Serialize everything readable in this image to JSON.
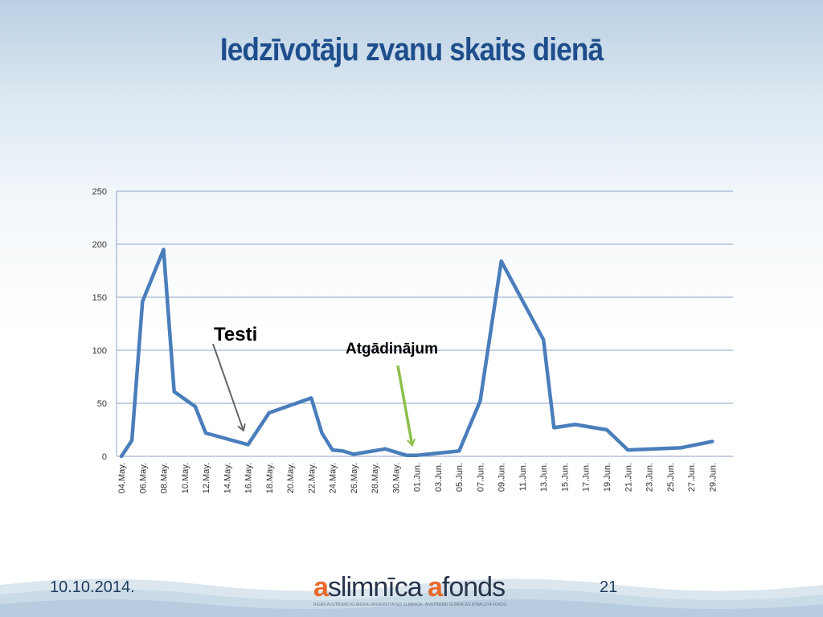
{
  "slide": {
    "title": "Iedzīvotāju zvanu skaits dienā",
    "date": "10.10.2014.",
    "page_number": "21"
  },
  "logo": {
    "a1": "a",
    "word1": "slimnīca",
    "a2": "a",
    "word2": "fonds",
    "subtitle": "RĪGAS AUSTRUMU KLĪNISKĀ UNIVERSITĀTES SLIMNĪCA · AUSTRUMU SLIMNĪCAS ATBALSTA FONDS",
    "accent_color": "#e8692a"
  },
  "chart_data": {
    "type": "line",
    "title": "",
    "xlabel": "",
    "ylabel": "",
    "ylim": [
      0,
      250
    ],
    "yticks": [
      0,
      50,
      100,
      150,
      200,
      250
    ],
    "grid": true,
    "legend": "none",
    "x_tick_labels": [
      "04.May.",
      "06.May.",
      "08.May.",
      "10.May.",
      "12.May.",
      "14.May.",
      "16.May.",
      "18.May.",
      "20.May.",
      "22.May.",
      "24.May.",
      "26.May.",
      "28.May.",
      "30.May.",
      "01.Jun.",
      "03.Jun.",
      "05.Jun.",
      "07.Jun.",
      "09.Jun.",
      "11.Jun.",
      "13.Jun.",
      "15.Jun.",
      "17.Jun.",
      "19.Jun.",
      "21.Jun.",
      "23.Jun.",
      "25.Jun.",
      "27.Jun.",
      "29.Jun."
    ],
    "x_start_date": "2014-05-04",
    "series": [
      {
        "name": "",
        "color": "#4a7ebb",
        "points": [
          [
            "2014-05-04",
            0
          ],
          [
            "2014-05-05",
            15
          ],
          [
            "2014-05-06",
            146
          ],
          [
            "2014-05-08",
            195
          ],
          [
            "2014-05-09",
            61
          ],
          [
            "2014-05-11",
            47
          ],
          [
            "2014-05-12",
            22
          ],
          [
            "2014-05-16",
            11
          ],
          [
            "2014-05-18",
            41
          ],
          [
            "2014-05-22",
            55
          ],
          [
            "2014-05-23",
            22
          ],
          [
            "2014-05-24",
            6
          ],
          [
            "2014-05-25",
            5
          ],
          [
            "2014-05-26",
            2
          ],
          [
            "2014-05-29",
            7
          ],
          [
            "2014-05-31",
            1
          ],
          [
            "2014-06-01",
            1
          ],
          [
            "2014-06-05",
            5
          ],
          [
            "2014-06-07",
            52
          ],
          [
            "2014-06-09",
            184
          ],
          [
            "2014-06-13",
            110
          ],
          [
            "2014-06-14",
            27
          ],
          [
            "2014-06-16",
            30
          ],
          [
            "2014-06-19",
            25
          ],
          [
            "2014-06-21",
            6
          ],
          [
            "2014-06-26",
            8
          ],
          [
            "2014-06-29",
            14
          ]
        ]
      }
    ],
    "annotations": [
      {
        "label": "Testi",
        "arrow_color": "#666666",
        "points_to_date": "2014-05-16",
        "points_to_value": 22
      },
      {
        "label": "Atgādinājum",
        "arrow_color": "#8cbf4b",
        "points_to_date": "2014-06-01",
        "points_to_value": 8
      }
    ]
  }
}
